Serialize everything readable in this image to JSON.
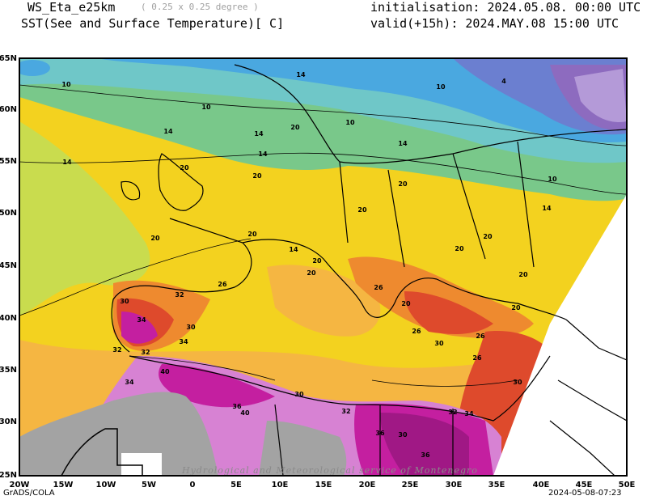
{
  "header": {
    "model": "WS_Eta_e25km",
    "resolution": "( 0.25 x 0.25 degree )",
    "field": "SST(See and Surface Temperature)[ C]",
    "init": "initialisation: 2024.05.08. 00:00 UTC",
    "valid": "valid(+15h): 2024.MAY.08 15:00 UTC"
  },
  "footer": {
    "left": "GrADS/COLA",
    "right": "2024-05-08-07:23"
  },
  "watermark": "Hydrological and Meteorological service of Montenegro",
  "axes": {
    "x_ticks": [
      "20W",
      "15W",
      "10W",
      "5W",
      "0",
      "5E",
      "10E",
      "15E",
      "20E",
      "25E",
      "30E",
      "35E",
      "40E",
      "45E",
      "50E"
    ],
    "y_ticks": [
      "65N",
      "60N",
      "55N",
      "50N",
      "45N",
      "40N",
      "35N",
      "30N",
      "25N"
    ]
  },
  "contour_labels": [
    "10",
    "10",
    "10",
    "10",
    "10",
    "4",
    "14",
    "14",
    "14",
    "14",
    "14",
    "14",
    "14",
    "14",
    "20",
    "20",
    "20",
    "20",
    "20",
    "20",
    "20",
    "20",
    "20",
    "20",
    "20",
    "20",
    "20",
    "20",
    "26",
    "26",
    "26",
    "26",
    "26",
    "30",
    "30",
    "30",
    "30",
    "30",
    "30",
    "32",
    "32",
    "32",
    "32",
    "32",
    "34",
    "34",
    "34",
    "34",
    "36",
    "36",
    "36",
    "40",
    "40"
  ],
  "colors": {
    "cold_purple": "#8d6bbf",
    "blue": "#4aa8e0",
    "teal": "#6fc7c8",
    "green": "#79c88a",
    "yellow_green": "#c9dc4e",
    "yellow": "#f3d21f",
    "light_orange": "#f5b642",
    "orange": "#ee8a2f",
    "red": "#de4a2c",
    "magenta": "#c41fa0",
    "pink": "#d782d3",
    "gray_land": "#a3a3a3"
  }
}
